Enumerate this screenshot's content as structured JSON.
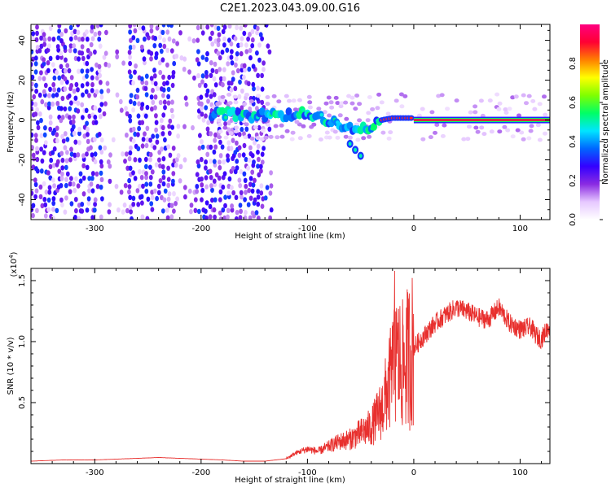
{
  "title": "C2E1.2023.043.09.00.G16",
  "chart_data": [
    {
      "type": "heatmap",
      "name": "spectrogram",
      "xlabel": "Height of straight line (km)",
      "ylabel": "Frequency (Hz)",
      "xlim": [
        -360,
        128
      ],
      "ylim": [
        -50,
        48
      ],
      "xticks": [
        -300,
        -200,
        -100,
        0,
        100
      ],
      "yticks": [
        -40,
        -20,
        0,
        20,
        40
      ],
      "colorbar": {
        "label": "Normalized spectral amplitude",
        "range": [
          0,
          1
        ],
        "ticks": [
          0.0,
          0.2,
          0.4,
          0.6,
          0.8
        ],
        "tick_labels": [
          "0.0",
          "0.2",
          "0.4",
          "0.6",
          "0.8"
        ],
        "colors": [
          "#ffffff",
          "#e6c8ff",
          "#8a2be2",
          "#3300ff",
          "#0066ff",
          "#00e5ff",
          "#00ff66",
          "#7fff00",
          "#ffff00",
          "#ff8000",
          "#ff0033",
          "#ff0080"
        ]
      },
      "ridge": [
        {
          "x": -190,
          "y": 3
        },
        {
          "x": -170,
          "y": 3
        },
        {
          "x": -150,
          "y": 2
        },
        {
          "x": -130,
          "y": 3
        },
        {
          "x": -110,
          "y": 2
        },
        {
          "x": -100,
          "y": 4
        },
        {
          "x": -90,
          "y": 1
        },
        {
          "x": -80,
          "y": 0
        },
        {
          "x": -70,
          "y": -2
        },
        {
          "x": -60,
          "y": -4
        },
        {
          "x": -50,
          "y": -5
        },
        {
          "x": -40,
          "y": -4
        },
        {
          "x": -30,
          "y": 0
        },
        {
          "x": -20,
          "y": 1
        },
        {
          "x": -10,
          "y": 1
        },
        {
          "x": 0,
          "y": 1
        },
        {
          "x": 20,
          "y": 0
        },
        {
          "x": 60,
          "y": 0
        },
        {
          "x": 100,
          "y": 0
        },
        {
          "x": 128,
          "y": 0
        }
      ],
      "side_branch": [
        {
          "x": -60,
          "y": -12
        },
        {
          "x": -55,
          "y": -15
        },
        {
          "x": -50,
          "y": -18
        }
      ]
    },
    {
      "type": "line",
      "name": "snr",
      "xlabel": "Height of straight line (km)",
      "ylabel": "SNR (10 * v/v)",
      "yscale_label": "(x10",
      "yscale_exponent": "4",
      "yscale_suffix": ")",
      "xlim": [
        -360,
        128
      ],
      "ylim": [
        0,
        1.6
      ],
      "xticks": [
        -300,
        -200,
        -100,
        0,
        100
      ],
      "yticks": [
        0.5,
        1.0,
        1.5
      ],
      "ytick_labels": [
        "0.5",
        "1.0",
        "1.5"
      ],
      "color": "#e8302e",
      "series": [
        {
          "x": [
            -360,
            -330,
            -300,
            -270,
            -240,
            -210,
            -180,
            -160,
            -140,
            -120,
            -110,
            -100,
            -90,
            -80,
            -70,
            -60,
            -50,
            -40,
            -30,
            -25,
            -20,
            -15,
            -10,
            -5,
            0,
            10,
            20,
            30,
            40,
            50,
            60,
            70,
            80,
            90,
            100,
            110,
            115,
            120,
            125,
            128
          ],
          "y": [
            0.02,
            0.03,
            0.03,
            0.04,
            0.05,
            0.04,
            0.03,
            0.02,
            0.02,
            0.04,
            0.09,
            0.12,
            0.1,
            0.14,
            0.18,
            0.2,
            0.25,
            0.3,
            0.45,
            0.6,
            0.75,
            0.85,
            0.8,
            0.88,
            0.95,
            1.05,
            1.15,
            1.22,
            1.28,
            1.25,
            1.2,
            1.18,
            1.28,
            1.15,
            1.1,
            1.12,
            1.05,
            1.02,
            1.1,
            1.12
          ]
        }
      ]
    }
  ]
}
